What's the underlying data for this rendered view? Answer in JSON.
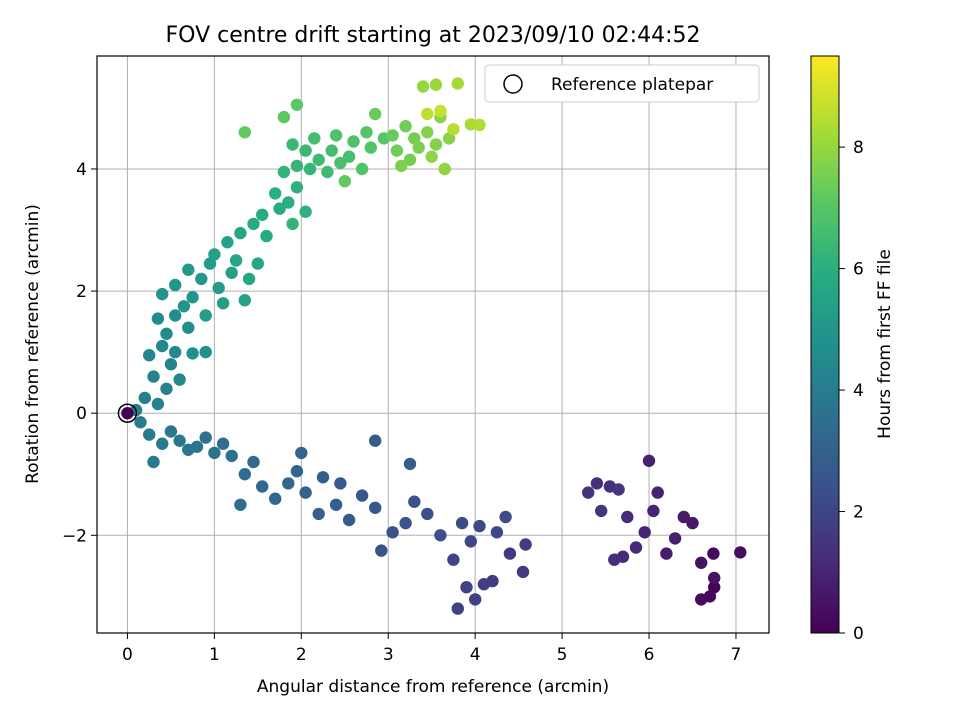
{
  "chart_data": {
    "type": "scatter",
    "title": "FOV centre drift starting at 2023/09/10 02:44:52",
    "xlabel": "Angular distance from reference (arcmin)",
    "ylabel": "Rotation from reference (arcmin)",
    "xlim": [
      -0.35,
      7.38
    ],
    "ylim": [
      -3.6,
      5.85
    ],
    "xticks": [
      0,
      1,
      2,
      3,
      4,
      5,
      6,
      7
    ],
    "yticks": [
      -2,
      0,
      2,
      4
    ],
    "grid": true,
    "legend": {
      "placement": "top-right",
      "entries": [
        "Reference platepar"
      ]
    },
    "reference_point": {
      "x": 0,
      "y": 0
    },
    "colorbar": {
      "label": "Hours from first FF file",
      "range": [
        0,
        9.5
      ],
      "ticks": [
        0,
        2,
        4,
        6,
        8
      ],
      "colormap": "viridis"
    },
    "series": [
      {
        "values": [
          [
            6.75,
            -2.85,
            0.1
          ],
          [
            6.7,
            -3.0,
            0.2
          ],
          [
            6.6,
            -3.05,
            0.3
          ],
          [
            6.74,
            -2.3,
            0.3
          ],
          [
            7.05,
            -2.28,
            0.4
          ],
          [
            6.6,
            -2.45,
            0.5
          ],
          [
            6.75,
            -2.7,
            0.5
          ],
          [
            6.5,
            -1.8,
            0.6
          ],
          [
            6.4,
            -1.7,
            0.7
          ],
          [
            6.3,
            -2.05,
            0.8
          ],
          [
            6.2,
            -2.3,
            0.8
          ],
          [
            6.0,
            -0.78,
            0.9
          ],
          [
            6.1,
            -1.3,
            0.9
          ],
          [
            6.05,
            -1.6,
            1.0
          ],
          [
            5.95,
            -1.95,
            1.0
          ],
          [
            5.85,
            -2.2,
            1.1
          ],
          [
            5.7,
            -2.35,
            1.1
          ],
          [
            5.6,
            -2.4,
            1.2
          ],
          [
            5.75,
            -1.7,
            1.2
          ],
          [
            5.55,
            -1.2,
            1.3
          ],
          [
            5.4,
            -1.15,
            1.3
          ],
          [
            5.3,
            -1.3,
            1.4
          ],
          [
            5.45,
            -1.6,
            1.4
          ],
          [
            5.65,
            -1.25,
            1.5
          ],
          [
            4.55,
            -2.6,
            1.6
          ],
          [
            4.4,
            -2.3,
            1.6
          ],
          [
            4.58,
            -2.15,
            1.7
          ],
          [
            4.2,
            -2.75,
            1.7
          ],
          [
            4.1,
            -2.8,
            1.8
          ],
          [
            4.0,
            -3.05,
            1.8
          ],
          [
            3.8,
            -3.2,
            1.9
          ],
          [
            3.9,
            -2.85,
            1.9
          ],
          [
            3.75,
            -2.4,
            2.0
          ],
          [
            3.95,
            -2.1,
            2.0
          ],
          [
            4.05,
            -1.85,
            2.1
          ],
          [
            4.25,
            -1.95,
            2.1
          ],
          [
            4.35,
            -1.7,
            2.2
          ],
          [
            3.85,
            -1.8,
            2.2
          ],
          [
            3.6,
            -2.0,
            2.3
          ],
          [
            3.45,
            -1.65,
            2.3
          ],
          [
            3.3,
            -1.45,
            2.4
          ],
          [
            3.2,
            -1.8,
            2.4
          ],
          [
            3.05,
            -1.95,
            2.5
          ],
          [
            2.92,
            -2.25,
            2.5
          ],
          [
            2.85,
            -1.55,
            2.6
          ],
          [
            2.7,
            -1.35,
            2.6
          ],
          [
            2.55,
            -1.75,
            2.7
          ],
          [
            2.45,
            -1.15,
            2.7
          ],
          [
            2.85,
            -0.45,
            2.8
          ],
          [
            3.25,
            -0.83,
            2.8
          ],
          [
            2.4,
            -1.5,
            2.9
          ],
          [
            2.25,
            -1.05,
            2.9
          ],
          [
            2.2,
            -1.65,
            3.0
          ],
          [
            2.05,
            -1.3,
            3.0
          ],
          [
            1.95,
            -0.95,
            3.1
          ],
          [
            2.0,
            -0.65,
            3.1
          ],
          [
            1.85,
            -1.15,
            3.2
          ],
          [
            1.7,
            -1.4,
            3.2
          ],
          [
            1.55,
            -1.2,
            3.3
          ],
          [
            1.45,
            -0.8,
            3.3
          ],
          [
            1.3,
            -1.5,
            3.4
          ],
          [
            1.35,
            -1.0,
            3.4
          ],
          [
            1.2,
            -0.7,
            3.5
          ],
          [
            1.1,
            -0.5,
            3.5
          ],
          [
            1.0,
            -0.65,
            3.6
          ],
          [
            0.9,
            -0.4,
            3.6
          ],
          [
            0.8,
            -0.55,
            3.7
          ],
          [
            0.7,
            -0.6,
            3.7
          ],
          [
            0.6,
            -0.45,
            3.8
          ],
          [
            0.5,
            -0.3,
            3.8
          ],
          [
            0.3,
            -0.8,
            3.9
          ],
          [
            0.4,
            -0.5,
            3.9
          ],
          [
            0.25,
            -0.35,
            4.0
          ],
          [
            0.15,
            -0.15,
            4.0
          ],
          [
            0.1,
            0.05,
            4.1
          ],
          [
            0.2,
            0.25,
            4.1
          ],
          [
            0.35,
            0.15,
            4.2
          ],
          [
            0.45,
            0.4,
            4.2
          ],
          [
            0.3,
            0.6,
            4.3
          ],
          [
            0.5,
            0.8,
            4.3
          ],
          [
            0.25,
            0.95,
            4.4
          ],
          [
            0.4,
            1.1,
            4.4
          ],
          [
            0.55,
            1.0,
            4.5
          ],
          [
            0.6,
            0.55,
            4.5
          ],
          [
            0.45,
            1.3,
            4.6
          ],
          [
            0.35,
            1.55,
            4.6
          ],
          [
            0.55,
            1.6,
            4.7
          ],
          [
            0.7,
            1.4,
            4.7
          ],
          [
            0.75,
            0.98,
            4.8
          ],
          [
            0.9,
            1.0,
            4.8
          ],
          [
            0.65,
            1.75,
            4.9
          ],
          [
            0.4,
            1.95,
            4.9
          ],
          [
            0.55,
            2.1,
            5.0
          ],
          [
            0.75,
            1.9,
            5.0
          ],
          [
            0.85,
            2.2,
            5.1
          ],
          [
            0.7,
            2.35,
            5.1
          ],
          [
            0.95,
            2.45,
            5.2
          ],
          [
            1.05,
            2.05,
            5.2
          ],
          [
            0.9,
            1.6,
            5.3
          ],
          [
            1.1,
            1.8,
            5.3
          ],
          [
            1.2,
            2.3,
            5.4
          ],
          [
            1.0,
            2.6,
            5.4
          ],
          [
            1.15,
            2.8,
            5.5
          ],
          [
            1.35,
            1.85,
            5.5
          ],
          [
            1.25,
            2.5,
            5.6
          ],
          [
            1.4,
            2.2,
            5.6
          ],
          [
            1.5,
            2.45,
            5.7
          ],
          [
            1.3,
            2.95,
            5.7
          ],
          [
            1.45,
            3.1,
            5.8
          ],
          [
            1.6,
            2.9,
            5.8
          ],
          [
            1.55,
            3.25,
            5.9
          ],
          [
            1.75,
            3.35,
            5.9
          ],
          [
            1.7,
            3.6,
            6.0
          ],
          [
            1.85,
            3.45,
            6.0
          ],
          [
            1.95,
            3.7,
            6.1
          ],
          [
            2.05,
            3.3,
            6.1
          ],
          [
            1.9,
            3.1,
            6.2
          ],
          [
            1.8,
            3.95,
            6.2
          ],
          [
            1.95,
            4.05,
            6.3
          ],
          [
            2.1,
            4.0,
            6.3
          ],
          [
            2.05,
            4.3,
            6.4
          ],
          [
            1.9,
            4.4,
            6.4
          ],
          [
            2.2,
            4.15,
            6.5
          ],
          [
            2.3,
            3.95,
            6.5
          ],
          [
            2.15,
            4.5,
            6.6
          ],
          [
            2.35,
            4.3,
            6.6
          ],
          [
            2.45,
            4.1,
            6.7
          ],
          [
            2.55,
            4.2,
            6.7
          ],
          [
            2.4,
            4.55,
            6.8
          ],
          [
            2.6,
            4.45,
            6.8
          ],
          [
            2.7,
            4.0,
            6.9
          ],
          [
            2.8,
            4.35,
            6.9
          ],
          [
            2.75,
            4.6,
            7.0
          ],
          [
            2.95,
            4.5,
            7.0
          ],
          [
            1.8,
            4.85,
            7.1
          ],
          [
            1.95,
            5.05,
            7.1
          ],
          [
            1.35,
            4.6,
            7.2
          ],
          [
            2.5,
            3.8,
            7.2
          ],
          [
            2.85,
            4.9,
            7.3
          ],
          [
            3.05,
            4.55,
            7.3
          ],
          [
            3.1,
            4.3,
            7.4
          ],
          [
            3.2,
            4.7,
            7.4
          ],
          [
            3.25,
            4.15,
            7.5
          ],
          [
            3.3,
            4.5,
            7.5
          ],
          [
            3.15,
            4.05,
            7.6
          ],
          [
            3.35,
            4.35,
            7.6
          ],
          [
            3.45,
            4.6,
            7.7
          ],
          [
            3.55,
            4.4,
            7.7
          ],
          [
            3.6,
            4.85,
            7.8
          ],
          [
            3.7,
            4.5,
            7.8
          ],
          [
            3.5,
            4.2,
            7.9
          ],
          [
            3.65,
            4.0,
            7.9
          ],
          [
            3.4,
            5.35,
            8.0
          ],
          [
            3.55,
            5.38,
            8.1
          ],
          [
            3.8,
            5.4,
            8.2
          ],
          [
            3.95,
            4.73,
            8.3
          ],
          [
            4.05,
            4.72,
            8.4
          ],
          [
            3.75,
            4.65,
            8.5
          ],
          [
            3.45,
            4.9,
            8.6
          ],
          [
            3.6,
            4.95,
            8.7
          ]
        ]
      }
    ]
  }
}
